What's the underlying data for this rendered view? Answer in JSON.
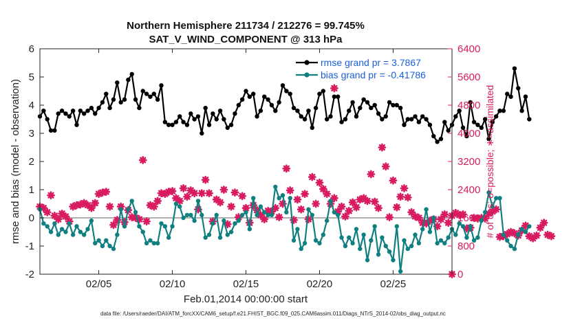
{
  "chart_data": {
    "type": "line",
    "title": "Northern Hemisphere 211734 / 212276 = 99.745%",
    "subtitle": "SAT_V_WIND_COMPONENT @ 313 hPa",
    "xlabel": "Feb.01,2014 00:00:00 start",
    "ylabel": "rmse and bias (model - observation)",
    "ylabel_right": "# of obs: o=possible; ∗=assimilated",
    "footnote": "data file: /Users/raeder/DAI/ATM_forcXX/CAM6_setup/f.e21.FHIST_BGC.f09_025.CAM6assim.011/Diags_NTrS_2014-02/obs_diag_output.nc",
    "xlim": [
      1.0,
      29.0
    ],
    "ylim": [
      -2,
      6
    ],
    "ylim_right": [
      0,
      6400
    ],
    "xticks": [
      5,
      10,
      15,
      20,
      25
    ],
    "xtick_labels": [
      "02/05",
      "02/10",
      "02/15",
      "02/20",
      "02/25"
    ],
    "yticks": [
      -2,
      -1,
      0,
      1,
      2,
      3,
      4,
      5,
      6
    ],
    "yticks_right": [
      0,
      800,
      1600,
      2400,
      3200,
      4000,
      4800,
      5600,
      6400
    ],
    "legend": [
      "rmse grand pr = 3.7867",
      "bias grand pr = -0.41786"
    ],
    "legend_position": "top-right",
    "colors": {
      "rmse": "#000000",
      "bias": "#0f7f80",
      "obs": "#d81b60",
      "zero": "#b0b0b0"
    },
    "x_start": 1.0,
    "x_step": 0.25,
    "series": [
      {
        "name": "rmse",
        "values": [
          3.6,
          3.8,
          3.5,
          3.1,
          3.1,
          3.7,
          3.8,
          3.7,
          3.6,
          3.8,
          3.3,
          3.8,
          3.7,
          3.8,
          3.9,
          3.7,
          3.9,
          4.1,
          4.4,
          3.9,
          4.2,
          4.8,
          4.1,
          4.2,
          4.9,
          5.1,
          4.2,
          3.9,
          4.5,
          4.4,
          4.3,
          4.4,
          4.2,
          4.7,
          3.4,
          3.3,
          3.3,
          3.4,
          3.6,
          3.4,
          3.3,
          3.7,
          3.5,
          3.6,
          3.0,
          3.9,
          3.3,
          3.7,
          3.5,
          3.8,
          3.5,
          3.2,
          3.3,
          3.7,
          4.0,
          4.2,
          4.5,
          4.3,
          4.4,
          3.6,
          3.8,
          4.3,
          4.2,
          4.0,
          3.8,
          4.1,
          4.7,
          4.5,
          4.4,
          3.9,
          3.8,
          3.6,
          3.5,
          3.8,
          3.2,
          3.9,
          4.4,
          4.5,
          3.5,
          3.6,
          4.3,
          4.3,
          3.4,
          3.5,
          3.8,
          4.1,
          3.6,
          3.9,
          4.2,
          4.1,
          3.9,
          4.0,
          3.7,
          3.5,
          3.6,
          4.1,
          4.0,
          4.0,
          3.9,
          3.3,
          3.5,
          3.5,
          3.6,
          3.4,
          3.6,
          3.5,
          3.3,
          2.9,
          2.7,
          2.8,
          3.4,
          3.1,
          3.3,
          3.6,
          3.8,
          3.2,
          2.9,
          4.1,
          3.4,
          3.3,
          3.2,
          3.5,
          2.8,
          3.4,
          3.6,
          3.8,
          3.8,
          4.4,
          4.3,
          5.3,
          4.6,
          3.8,
          4.3,
          3.5
        ]
      },
      {
        "name": "bias",
        "values": [
          0.3,
          -0.2,
          -0.3,
          -0.5,
          -0.2,
          -0.6,
          -0.4,
          -0.5,
          -0.2,
          -0.6,
          -0.3,
          -0.5,
          -0.6,
          -0.4,
          -0.1,
          -0.9,
          -0.8,
          -1.0,
          -0.8,
          -1.0,
          -1.1,
          -0.6,
          0.3,
          -0.3,
          0.3,
          0.6,
          0.2,
          -0.3,
          -0.5,
          -0.9,
          -0.8,
          -0.9,
          -0.9,
          -0.2,
          -0.3,
          -0.7,
          -0.3,
          0.5,
          0.4,
          0.0,
          0.1,
          0.1,
          -0.1,
          0.6,
          0.1,
          -0.7,
          -0.6,
          -0.2,
          0.1,
          -0.7,
          -0.1,
          -0.6,
          -0.5,
          -0.2,
          -0.1,
          0.1,
          0.2,
          -0.4,
          0.7,
          0.1,
          0.4,
          0.2,
          0.1,
          0.1,
          1.1,
          0.7,
          0.8,
          0.2,
          0.7,
          -0.8,
          -0.4,
          -1.1,
          -0.9,
          0.3,
          0.1,
          -0.8,
          -0.9,
          -0.6,
          -0.1,
          0.6,
          0.2,
          0.1,
          -0.7,
          -1.0,
          -0.7,
          -0.9,
          -0.4,
          -1.1,
          -0.6,
          -1.5,
          -0.8,
          -0.3,
          -1.3,
          -0.7,
          -1.0,
          -1.2,
          -1.5,
          -0.3,
          -1.9,
          -0.8,
          -1.1,
          -1.0,
          -0.6,
          -0.9,
          -0.4,
          0.3,
          -0.5,
          0.0,
          -0.9,
          -0.8,
          -0.9,
          -0.7,
          -0.4,
          -0.6,
          -0.2,
          -0.3,
          -0.7,
          -0.3,
          -0.8,
          -0.7,
          -0.1,
          0.2,
          0.9,
          0.4,
          0.7,
          0.7,
          -0.6,
          -0.8,
          -1.0,
          -1.1,
          -0.6,
          -0.4,
          -0.5,
          -0.3
        ]
      },
      {
        "name": "obs",
        "values": [
          1920,
          1880,
          1760,
          2240,
          1660,
          1560,
          1720,
          1640,
          1500,
          1920,
          1960,
          1980,
          2020,
          1960,
          1880,
          2020,
          2280,
          2320,
          2340,
          1920,
          1400,
          1540,
          1920,
          1480,
          1820,
          1620,
          1600,
          1560,
          3240,
          1500,
          1960,
          1920,
          2080,
          2300,
          2280,
          2340,
          2360,
          2160,
          2080,
          2440,
          2200,
          2380,
          2300,
          1840,
          2300,
          2680,
          2300,
          1500,
          2120,
          2040,
          2400,
          1420,
          1920,
          2320,
          1620,
          2220,
          1880,
          1460,
          1960,
          1820,
          1680,
          1560,
          1800,
          1780,
          1880,
          1620,
          2000,
          3000,
          2380,
          1540,
          2120,
          1840,
          2280,
          1560,
          2760,
          2000,
          2600,
          2420,
          2280,
          2000,
          2160,
          1780,
          1920,
          1640,
          1800,
          2040,
          1900,
          2120,
          2160,
          2080,
          2840,
          2060,
          1880,
          3600,
          3060,
          1620,
          2660,
          1900,
          2200,
          2440,
          2180,
          1760,
          1640,
          1600,
          1460,
          1440,
          1520,
          1560,
          1360,
          1560,
          1700,
          1460,
          1660,
          1740,
          1680,
          1700,
          1300,
          1320,
          1600,
          1580,
          1600,
          1580,
          1720,
          1780,
          1840,
          1060,
          1080,
          1140,
          1200,
          1160,
          1100,
          1240,
          1380,
          1080,
          1020,
          1100,
          1320,
          1460,
          1120,
          1080
        ]
      }
    ],
    "obs_last": 0,
    "obs_highlight": {
      "x": 21.0,
      "value": 5280
    }
  }
}
